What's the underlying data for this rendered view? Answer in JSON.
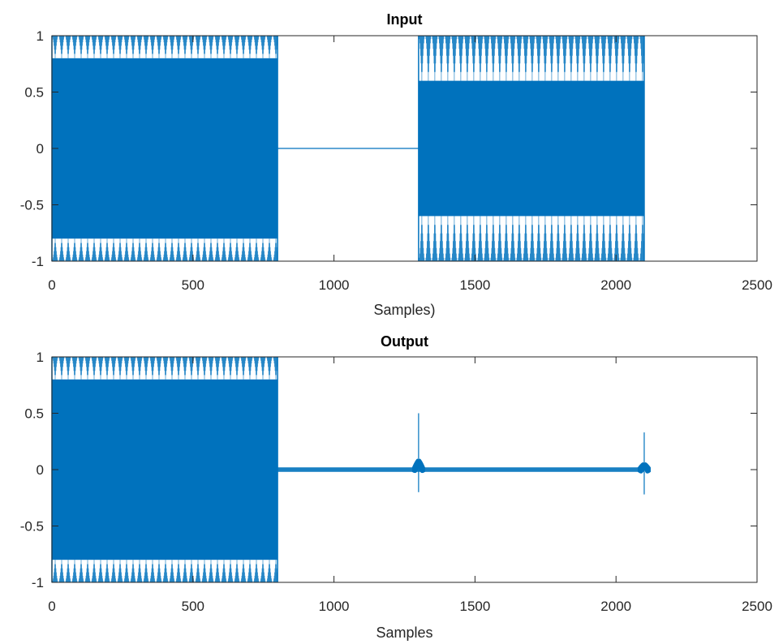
{
  "chart_data": [
    {
      "type": "line",
      "title": "Input",
      "xlabel": "Samples)",
      "ylabel": "",
      "xlim": [
        0,
        2500
      ],
      "ylim": [
        -1,
        1
      ],
      "xticks": [
        0,
        500,
        1000,
        1500,
        2000,
        2500
      ],
      "xtick_labels": [
        "0",
        "500",
        "1000",
        "1500",
        "2000",
        "2500"
      ],
      "yticks": [
        -1,
        -0.5,
        0,
        0.5,
        1
      ],
      "ytick_labels": [
        "-1",
        "-0.5",
        "0",
        "0.5",
        "1"
      ],
      "grid": false,
      "series": [
        {
          "color": "#0072BD",
          "segments": [
            {
              "x_start": 0,
              "x_end": 800,
              "kind": "oscillation",
              "amplitude": 1.0,
              "inner_envelope": 0.8
            },
            {
              "x_start": 800,
              "x_end": 1300,
              "kind": "flat",
              "value": 0
            },
            {
              "x_start": 1300,
              "x_end": 2100,
              "kind": "oscillation",
              "amplitude": 1.0,
              "inner_envelope": 0.6
            }
          ]
        }
      ]
    },
    {
      "type": "line",
      "title": "Output",
      "xlabel": "Samples",
      "ylabel": "",
      "xlim": [
        0,
        2500
      ],
      "ylim": [
        -1,
        1
      ],
      "xticks": [
        0,
        500,
        1000,
        1500,
        2000,
        2500
      ],
      "xtick_labels": [
        "0",
        "500",
        "1000",
        "1500",
        "2000",
        "2500"
      ],
      "yticks": [
        -1,
        -0.5,
        0,
        0.5,
        1
      ],
      "ytick_labels": [
        "-1",
        "-0.5",
        "0",
        "0.5",
        "1"
      ],
      "grid": false,
      "series": [
        {
          "color": "#0072BD",
          "segments": [
            {
              "x_start": 0,
              "x_end": 800,
              "kind": "oscillation",
              "amplitude": 1.0,
              "inner_envelope": 0.8
            },
            {
              "x_start": 800,
              "x_end": 2100,
              "kind": "residual",
              "amplitude": 0.02
            }
          ],
          "spikes": [
            {
              "x": 1300,
              "max": 0.5,
              "min": -0.2
            },
            {
              "x": 2100,
              "max": 0.33,
              "min": -0.22
            }
          ]
        }
      ]
    }
  ]
}
